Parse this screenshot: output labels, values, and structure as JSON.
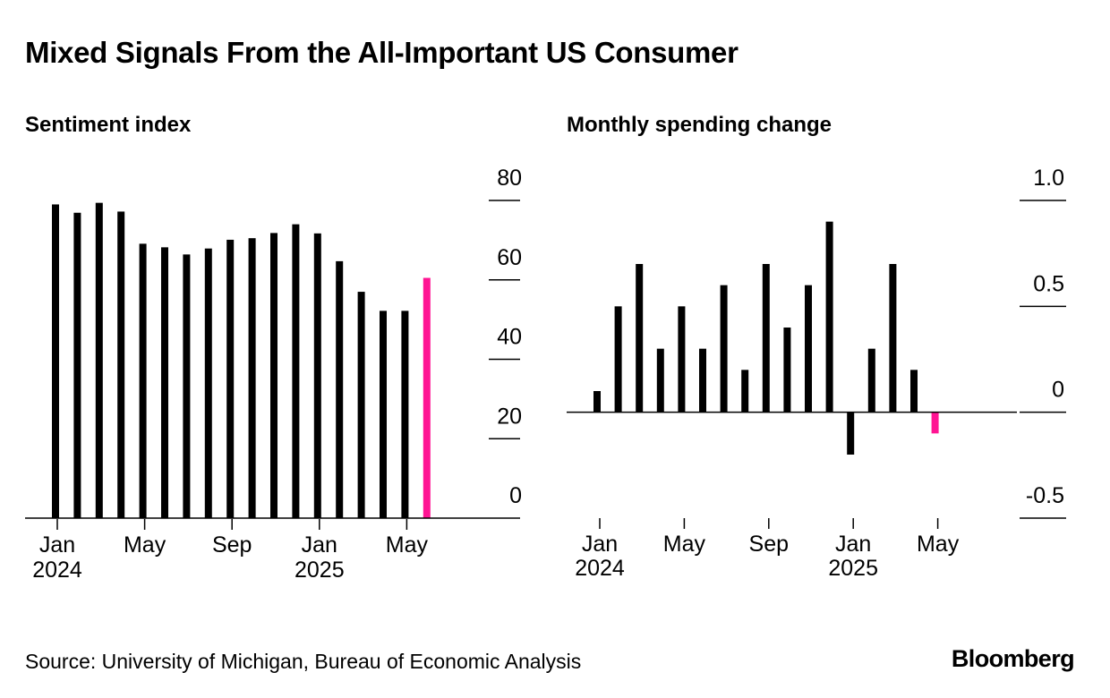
{
  "title": "Mixed Signals From the All-Important US Consumer",
  "source": "Source: University of Michigan, Bureau of Economic Analysis",
  "brand": "Bloomberg",
  "colors": {
    "bar": "#000000",
    "highlight": "#ff1493",
    "axis": "#000000"
  },
  "chart_data": [
    {
      "type": "bar",
      "title": "Sentiment index",
      "x": [
        "2024-01",
        "2024-02",
        "2024-03",
        "2024-04",
        "2024-05",
        "2024-06",
        "2024-07",
        "2024-08",
        "2024-09",
        "2024-10",
        "2024-11",
        "2024-12",
        "2025-01",
        "2025-02",
        "2025-03",
        "2025-04",
        "2025-05",
        "2025-06"
      ],
      "values": [
        79,
        76.9,
        79.4,
        77.2,
        69.1,
        68.2,
        66.4,
        67.9,
        70.1,
        70.5,
        71.8,
        74.0,
        71.7,
        64.7,
        57.0,
        52.2,
        52.2,
        60.5
      ],
      "highlight_index": 17,
      "ylim": [
        0,
        80
      ],
      "y_ticks": [
        "80",
        "60",
        "40",
        "20",
        "0"
      ],
      "x_tick_labels": [
        {
          "month": "Jan",
          "year": "2024"
        },
        {
          "month": "May",
          "year": ""
        },
        {
          "month": "Sep",
          "year": ""
        },
        {
          "month": "Jan",
          "year": "2025"
        },
        {
          "month": "May",
          "year": ""
        }
      ],
      "grid": "tick-dashes at right axis",
      "legend": "none"
    },
    {
      "type": "bar",
      "title": "Monthly spending change",
      "x": [
        "2024-01",
        "2024-02",
        "2024-03",
        "2024-04",
        "2024-05",
        "2024-06",
        "2024-07",
        "2024-08",
        "2024-09",
        "2024-10",
        "2024-11",
        "2024-12",
        "2025-01",
        "2025-02",
        "2025-03",
        "2025-04",
        "2025-05"
      ],
      "values": [
        0.1,
        0.5,
        0.7,
        0.3,
        0.5,
        0.3,
        0.6,
        0.2,
        0.7,
        0.4,
        0.6,
        0.9,
        -0.2,
        0.3,
        0.7,
        0.2,
        -0.1
      ],
      "highlight_index": 16,
      "ylim": [
        -0.5,
        1.0
      ],
      "y_ticks": [
        "1.0",
        "0.5",
        "0",
        "-0.5"
      ],
      "x_tick_labels": [
        {
          "month": "Jan",
          "year": "2024"
        },
        {
          "month": "May",
          "year": ""
        },
        {
          "month": "Sep",
          "year": ""
        },
        {
          "month": "Jan",
          "year": "2025"
        },
        {
          "month": "May",
          "year": ""
        }
      ],
      "grid": "tick-dashes at right axis",
      "legend": "none"
    }
  ]
}
